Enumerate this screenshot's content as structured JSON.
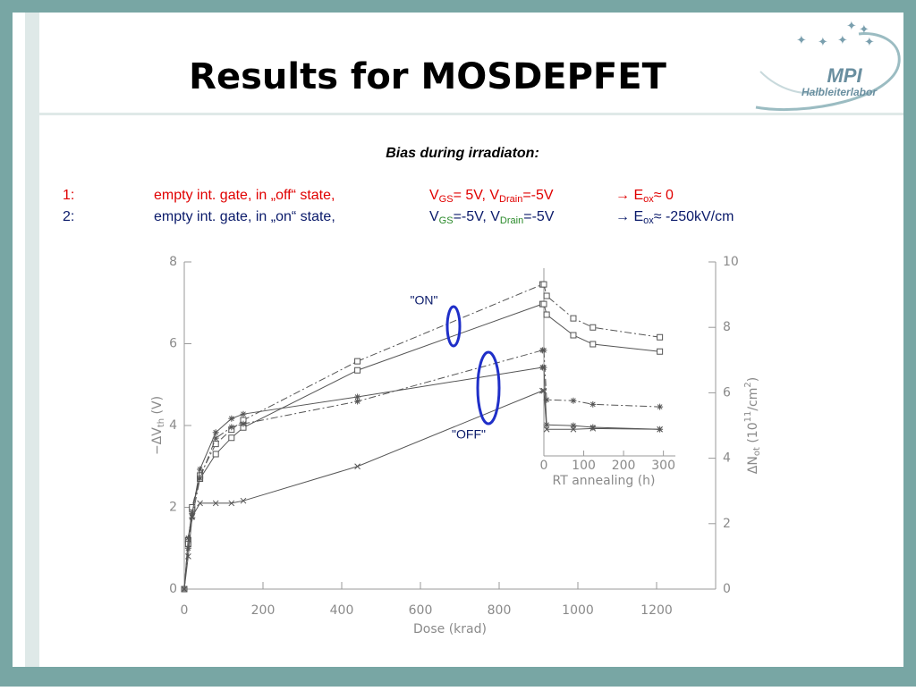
{
  "slide": {
    "title": "Results for MOSDEPFET",
    "heading": "Bias during irradiaton:",
    "lines": [
      [
        "1:",
        "empty int. gate,  in „off“ state,",
        "V",
        "GS",
        "= 5V, V",
        "Drain",
        "=-5V",
        "→ E",
        "ox",
        "≈ 0"
      ],
      [
        "2:",
        "empty int. gate, in „on“ state,",
        "V",
        "GS",
        "=-5V, V",
        "Drain",
        "=-5V",
        "→ E",
        "ox",
        "≈ -250kV/cm"
      ]
    ]
  },
  "logo": {
    "name": "MPI",
    "subtitle": "Halbleiterlabor"
  },
  "chart_data": [
    {
      "type": "line",
      "x": [
        0,
        10,
        20,
        40,
        80,
        120,
        150,
        440,
        910
      ],
      "xlim": [
        0,
        1350
      ],
      "xticks": [
        0,
        200,
        400,
        600,
        800,
        1000,
        1200
      ],
      "ylim": [
        0,
        8
      ],
      "yticks": [
        0,
        2,
        4,
        6,
        8
      ],
      "y2lim": [
        0,
        10
      ],
      "y2ticks": [
        0,
        2,
        4,
        6,
        8,
        10
      ],
      "xlabel": "Dose  (krad)",
      "ylabel": [
        "−ΔV",
        "th",
        " (V)"
      ],
      "y2label": [
        "ΔN",
        "ot",
        " (10",
        "11",
        "/cm",
        "2",
        ")"
      ],
      "series": [
        {
          "color": "#555555",
          "marker": "square",
          "dash": "solid",
          "values": [
            0,
            1.2,
            1.95,
            2.7,
            3.3,
            3.7,
            3.95,
            5.35,
            6.97
          ]
        },
        {
          "color": "#555555",
          "marker": "square",
          "dash": "dashdot",
          "values": [
            0,
            1.1,
            2.0,
            2.78,
            3.55,
            3.9,
            4.13,
            5.57,
            7.45
          ]
        },
        {
          "color": "#555555",
          "marker": "star",
          "dash": "solid",
          "values": [
            0,
            1.25,
            1.85,
            2.93,
            3.83,
            4.17,
            4.28,
            4.7,
            5.42
          ]
        },
        {
          "color": "#555555",
          "marker": "star",
          "dash": "dashdot",
          "values": [
            0,
            1.0,
            1.75,
            2.71,
            3.69,
            3.96,
            4.04,
            4.59,
            5.84
          ]
        },
        {
          "color": "#555555",
          "marker": "x",
          "dash": "solid",
          "values": [
            0,
            0.8,
            1.77,
            2.1,
            2.1,
            2.1,
            2.16,
            3.0,
            4.85
          ]
        }
      ],
      "annotations": [
        "\"ON\"",
        "\"OFF\""
      ],
      "annotation_color": "#1f2fc8"
    },
    {
      "type": "line",
      "x": [
        0,
        7,
        74,
        123,
        291
      ],
      "xlim": [
        0,
        330
      ],
      "xticks": [
        0,
        100,
        200,
        300
      ],
      "ylim": [
        3.26,
        8
      ],
      "xlabel": "RT annealing (h)",
      "series": [
        {
          "color": "#555555",
          "marker": "square",
          "dash": "solid",
          "values": [
            6.97,
            6.71,
            6.21,
            5.99,
            5.81
          ]
        },
        {
          "color": "#555555",
          "marker": "square",
          "dash": "dashdot",
          "values": [
            7.45,
            7.17,
            6.62,
            6.4,
            6.16
          ]
        },
        {
          "color": "#555555",
          "marker": "star",
          "dash": "solid",
          "values": [
            5.42,
            4.02,
            4.0,
            3.96,
            3.91
          ]
        },
        {
          "color": "#555555",
          "marker": "star",
          "dash": "dashdot",
          "values": [
            5.84,
            4.63,
            4.61,
            4.52,
            4.46
          ]
        },
        {
          "color": "#555555",
          "marker": "x",
          "dash": "solid",
          "values": [
            4.85,
            3.91,
            3.91,
            3.93,
            3.91
          ]
        }
      ]
    }
  ]
}
